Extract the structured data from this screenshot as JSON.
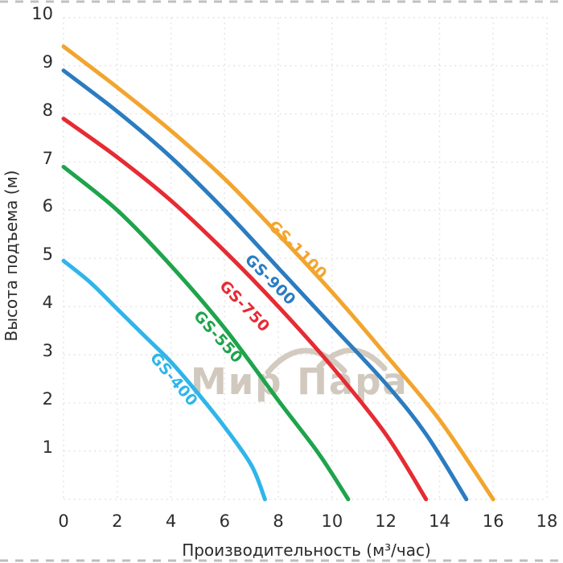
{
  "watermark": {
    "text": "Мир Пара",
    "color": "#c9c0b3"
  },
  "chart_data": {
    "type": "line",
    "title": "",
    "xlabel": "Производительность (м³/час)",
    "ylabel": "Высота подъема (м)",
    "xlim": [
      0,
      18
    ],
    "ylim": [
      0,
      10
    ],
    "x_ticks": [
      "0",
      "2",
      "4",
      "6",
      "8",
      "10",
      "12",
      "14",
      "16",
      "18"
    ],
    "y_ticks": [
      "1",
      "2",
      "3",
      "4",
      "5",
      "6",
      "7",
      "8",
      "9",
      "10"
    ],
    "grid": {
      "show": true,
      "style": "dotted",
      "color": "#e3e1e1",
      "x_step": 2,
      "y_step": 1
    },
    "text_color": "#2c2c2c",
    "legend_position": "labels-on-curves",
    "series": [
      {
        "name": "GS-1100",
        "color": "#f2a52e",
        "points": [
          [
            0,
            9.4
          ],
          [
            2,
            8.55
          ],
          [
            4,
            7.65
          ],
          [
            6,
            6.65
          ],
          [
            8,
            5.5
          ],
          [
            10,
            4.3
          ],
          [
            12,
            3.0
          ],
          [
            14,
            1.65
          ],
          [
            16,
            0
          ]
        ],
        "label": {
          "x": 370,
          "y": 311,
          "angle": 45
        }
      },
      {
        "name": "GS-900",
        "color": "#2b7cc0",
        "points": [
          [
            0,
            8.9
          ],
          [
            2,
            8.05
          ],
          [
            4,
            7.1
          ],
          [
            6,
            6.0
          ],
          [
            8,
            4.8
          ],
          [
            10,
            3.6
          ],
          [
            12,
            2.4
          ],
          [
            13.5,
            1.35
          ],
          [
            15,
            0
          ]
        ],
        "label": {
          "x": 336,
          "y": 348,
          "angle": 45
        }
      },
      {
        "name": "GS-750",
        "color": "#e62b33",
        "points": [
          [
            0,
            7.9
          ],
          [
            2,
            7.1
          ],
          [
            4,
            6.2
          ],
          [
            6,
            5.15
          ],
          [
            8,
            4.0
          ],
          [
            10,
            2.75
          ],
          [
            12,
            1.35
          ],
          [
            13.5,
            0
          ]
        ],
        "label": {
          "x": 304,
          "y": 381,
          "angle": 46
        }
      },
      {
        "name": "GS-550",
        "color": "#1ea44b",
        "points": [
          [
            0,
            6.9
          ],
          [
            2,
            6.0
          ],
          [
            4,
            4.85
          ],
          [
            6,
            3.55
          ],
          [
            8,
            2.05
          ],
          [
            9.5,
            0.95
          ],
          [
            10.6,
            0
          ]
        ],
        "label": {
          "x": 271,
          "y": 419,
          "angle": 48
        }
      },
      {
        "name": "GS-400",
        "color": "#2fb5e9",
        "points": [
          [
            0,
            4.95
          ],
          [
            1,
            4.5
          ],
          [
            2,
            3.95
          ],
          [
            3,
            3.4
          ],
          [
            4,
            2.85
          ],
          [
            5,
            2.2
          ],
          [
            6,
            1.5
          ],
          [
            7,
            0.7
          ],
          [
            7.5,
            0
          ]
        ],
        "label": {
          "x": 216,
          "y": 472,
          "angle": 50
        }
      }
    ]
  }
}
